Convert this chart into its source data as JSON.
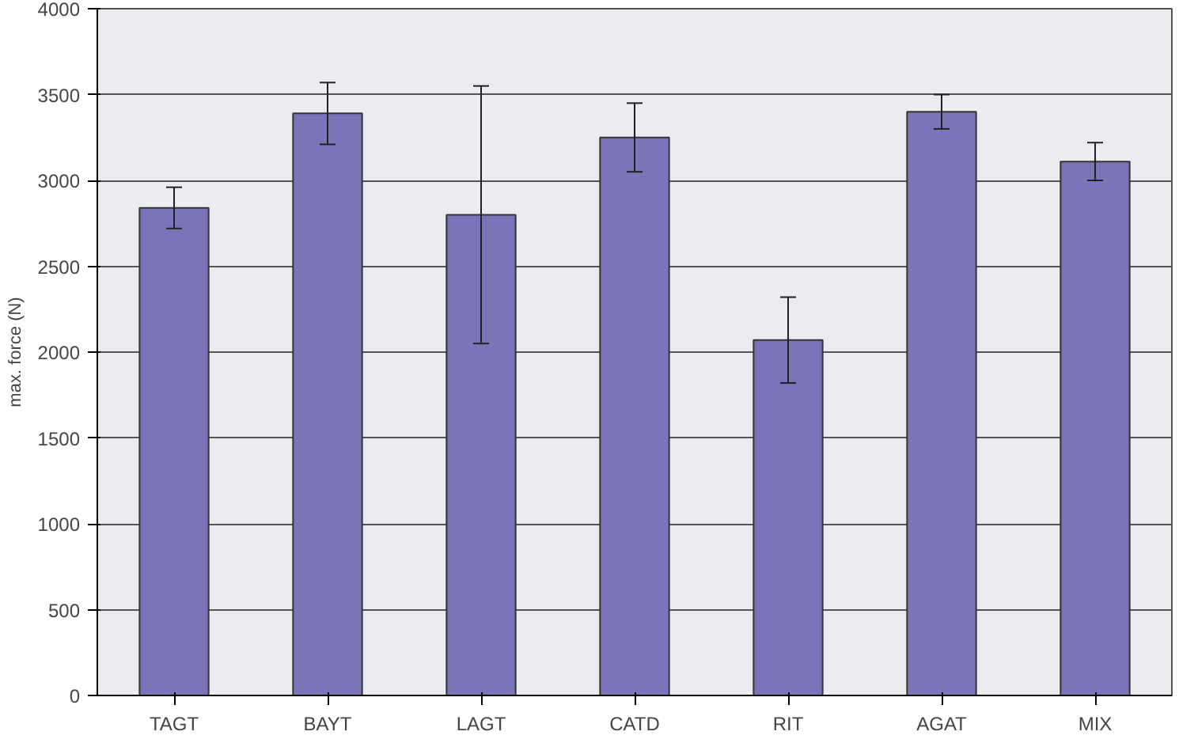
{
  "chart_data": {
    "type": "bar",
    "ylabel": "max. force (N)",
    "categories": [
      "TAGT",
      "BAYT",
      "LAGT",
      "CATD",
      "RIT",
      "AGAT",
      "MIX"
    ],
    "values": [
      2840,
      3390,
      2800,
      3250,
      2070,
      3400,
      3110
    ],
    "errors": [
      120,
      180,
      750,
      200,
      250,
      100,
      110
    ],
    "color": "#7b74b8",
    "ylim": [
      0,
      4000
    ],
    "yticks": [
      0,
      500,
      1000,
      1500,
      2000,
      2500,
      3000,
      3500,
      4000
    ],
    "grid": "y"
  }
}
